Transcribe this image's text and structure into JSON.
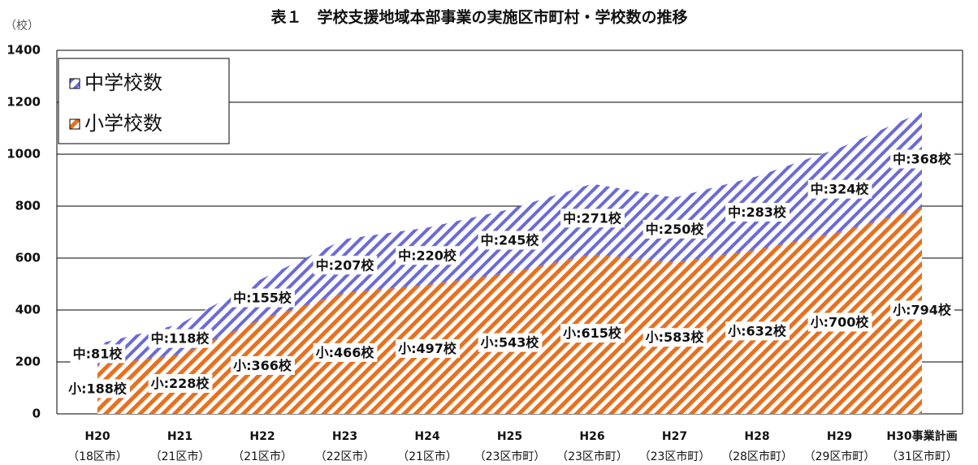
{
  "chart_data": {
    "type": "stacked_area",
    "title": "表１　学校支援地域本部事業の実施区市町村・学校数の推移",
    "y_label": "（校）",
    "categories": [
      "H20",
      "H21",
      "H22",
      "H23",
      "H24",
      "H25",
      "H26",
      "H27",
      "H28",
      "H29",
      "H30事業計画"
    ],
    "category_notes": [
      "（18区市）",
      "（21区市）",
      "（21区市）",
      "（22区市）",
      "（21区市）",
      "（23区市町）",
      "（23区市町）",
      "（23区市町）",
      "（28区市町）",
      "（29区市町）",
      "（31区市町）"
    ],
    "series": [
      {
        "name": "小学校数",
        "color": "#e8701e",
        "values": [
          188,
          228,
          366,
          466,
          497,
          543,
          615,
          583,
          632,
          700,
          794
        ],
        "value_labels": [
          "小:188校",
          "小:228校",
          "小:366校",
          "小:466校",
          "小:497校",
          "小:543校",
          "小:615校",
          "小:583校",
          "小:632校",
          "小:700校",
          "小:794校"
        ]
      },
      {
        "name": "中学校数",
        "color": "#6a6ad8",
        "values": [
          81,
          118,
          155,
          207,
          220,
          245,
          271,
          250,
          283,
          324,
          368
        ],
        "value_labels": [
          "中:81校",
          "中:118校",
          "中:155校",
          "中:207校",
          "中:220校",
          "中:245校",
          "中:271校",
          "中:250校",
          "中:283校",
          "中:324校",
          "中:368校"
        ]
      }
    ],
    "ylim": [
      0,
      1400
    ],
    "yticks": [
      0,
      200,
      400,
      600,
      800,
      1000,
      1200,
      1400
    ],
    "grid": true
  }
}
